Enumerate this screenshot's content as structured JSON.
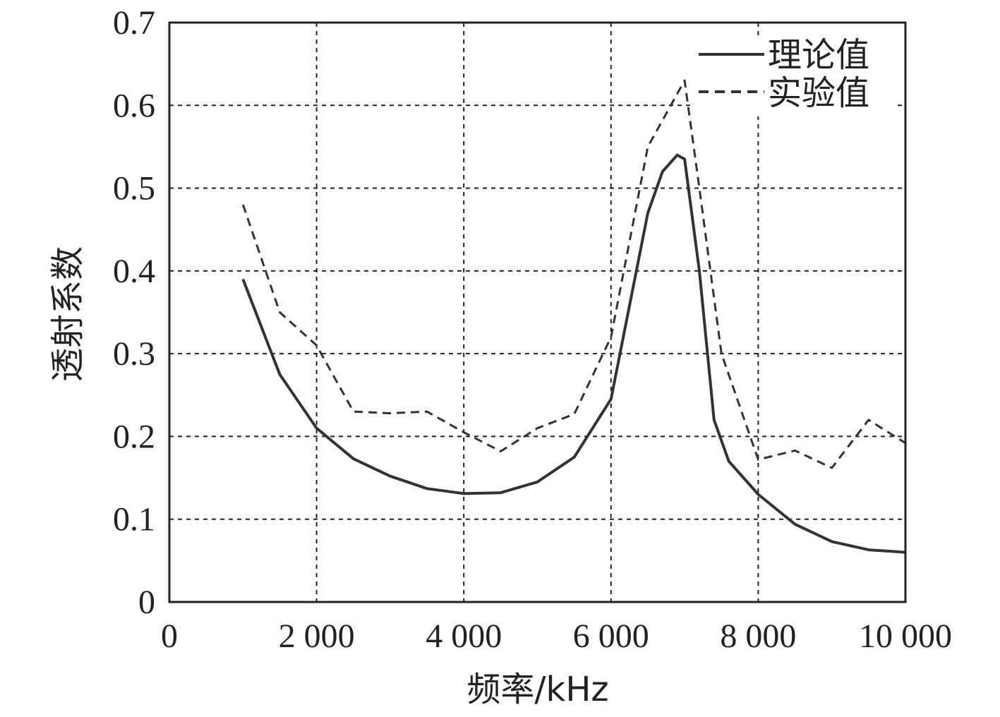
{
  "chart_data": {
    "type": "line",
    "xlabel": "频率/kHz",
    "ylabel": "透射系数",
    "xlim": [
      0,
      10000
    ],
    "ylim": [
      0,
      0.7
    ],
    "x_ticks": [
      0,
      2000,
      4000,
      6000,
      8000,
      10000
    ],
    "x_tick_labels": [
      "0",
      "2 000",
      "4 000",
      "6 000",
      "8 000",
      "10 000"
    ],
    "y_ticks": [
      0,
      0.1,
      0.2,
      0.3,
      0.4,
      0.5,
      0.6,
      0.7
    ],
    "y_tick_labels": [
      "0",
      "0.1",
      "0.2",
      "0.3",
      "0.4",
      "0.5",
      "0.6",
      "0.7"
    ],
    "grid": true,
    "legend_position": "top-right",
    "series": [
      {
        "name": "理论值",
        "style": "solid",
        "color": "#333333",
        "points": [
          [
            1000,
            0.39
          ],
          [
            1500,
            0.275
          ],
          [
            2000,
            0.21
          ],
          [
            2500,
            0.173
          ],
          [
            3000,
            0.152
          ],
          [
            3500,
            0.137
          ],
          [
            4000,
            0.131
          ],
          [
            4500,
            0.132
          ],
          [
            5000,
            0.145
          ],
          [
            5500,
            0.175
          ],
          [
            6000,
            0.245
          ],
          [
            6300,
            0.38
          ],
          [
            6500,
            0.47
          ],
          [
            6700,
            0.52
          ],
          [
            6900,
            0.54
          ],
          [
            7000,
            0.535
          ],
          [
            7200,
            0.4
          ],
          [
            7400,
            0.22
          ],
          [
            7600,
            0.17
          ],
          [
            8000,
            0.13
          ],
          [
            8500,
            0.094
          ],
          [
            9000,
            0.073
          ],
          [
            9500,
            0.063
          ],
          [
            10000,
            0.06
          ]
        ]
      },
      {
        "name": "实验值",
        "style": "dashed",
        "color": "#333333",
        "points": [
          [
            1000,
            0.48
          ],
          [
            1500,
            0.35
          ],
          [
            2000,
            0.31
          ],
          [
            2500,
            0.23
          ],
          [
            3000,
            0.228
          ],
          [
            3500,
            0.23
          ],
          [
            4000,
            0.205
          ],
          [
            4500,
            0.182
          ],
          [
            5000,
            0.21
          ],
          [
            5500,
            0.227
          ],
          [
            6000,
            0.32
          ],
          [
            6500,
            0.55
          ],
          [
            7000,
            0.63
          ],
          [
            7200,
            0.5
          ],
          [
            7500,
            0.3
          ],
          [
            8000,
            0.172
          ],
          [
            8500,
            0.183
          ],
          [
            9000,
            0.162
          ],
          [
            9500,
            0.22
          ],
          [
            10000,
            0.192
          ]
        ]
      }
    ]
  }
}
